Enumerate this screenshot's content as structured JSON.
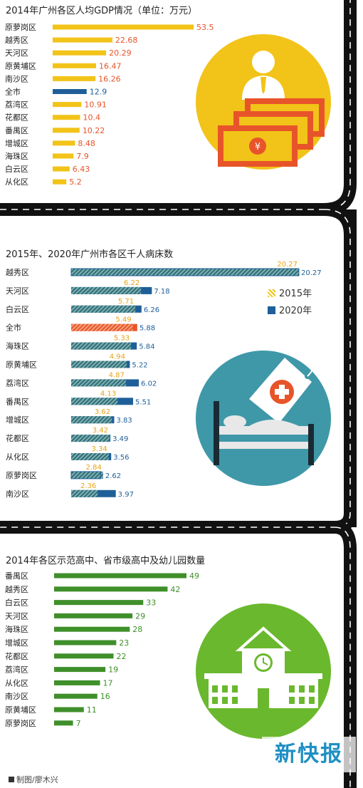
{
  "credit": "制图/廖木兴",
  "watermark": "新快报",
  "colors": {
    "gold": "#f2c318",
    "blue": "#1f5f99",
    "orange": "#e8542a",
    "teal": "#3f7f86",
    "teal_hatch": "#39767d",
    "green": "#3f8f2a",
    "road": "#111111"
  },
  "icons": [
    "businessman-icon",
    "banknote-icon",
    "yuan-icon",
    "hospital-bed-icon",
    "medical-tag-icon",
    "school-building-icon",
    "clock-icon"
  ],
  "chart_data": [
    {
      "type": "bar",
      "title": "2014年广州各区人均GDP情况（单位：万元）",
      "categories": [
        "原萝岗区",
        "越秀区",
        "天河区",
        "原黄埔区",
        "南沙区",
        "全市",
        "荔湾区",
        "花都区",
        "番禺区",
        "增城区",
        "海珠区",
        "白云区",
        "从化区"
      ],
      "values": [
        53.5,
        22.68,
        20.29,
        16.47,
        16.26,
        12.9,
        10.91,
        10.4,
        10.22,
        8.48,
        7.9,
        6.43,
        5.2
      ],
      "labels": [
        "53.5",
        "22.68",
        "20.29",
        "16.47",
        "16.26",
        "12.9",
        "10.91",
        "10.4",
        "10.22",
        "8.48",
        "7.9",
        "6.43",
        "5.2"
      ],
      "highlight": "全市"
    },
    {
      "type": "bar",
      "title": "2015年、2020年广州市各区千人病床数",
      "categories": [
        "越秀区",
        "天河区",
        "白云区",
        "全市",
        "海珠区",
        "原黄埔区",
        "荔湾区",
        "番禺区",
        "增城区",
        "花都区",
        "从化区",
        "原萝岗区",
        "南沙区"
      ],
      "series": [
        {
          "name": "2015年",
          "values": [
            20.27,
            6.22,
            5.71,
            5.49,
            5.33,
            4.94,
            4.87,
            4.13,
            3.62,
            3.42,
            3.34,
            2.84,
            2.36
          ],
          "labels": [
            "20.27",
            "6.22",
            "5.71",
            "5.49",
            "5.33",
            "4.94",
            "4.87",
            "4.13",
            "3.62",
            "3.42",
            "3.34",
            "2.84",
            "2.36"
          ]
        },
        {
          "name": "2020年",
          "values": [
            20.27,
            7.18,
            6.26,
            5.88,
            5.84,
            5.22,
            6.02,
            5.51,
            3.83,
            3.49,
            3.56,
            2.62,
            3.97
          ],
          "labels": [
            "20.27",
            "7.18",
            "6.26",
            "5.88",
            "5.84",
            "5.22",
            "6.02",
            "5.51",
            "3.83",
            "3.49",
            "3.56",
            "2.62",
            "3.97"
          ]
        }
      ],
      "legend": [
        "2015年",
        "2020年"
      ],
      "legend_position": "right",
      "highlight": "全市"
    },
    {
      "type": "bar",
      "title": "2014年各区示范高中、省市级高中及幼儿园数量",
      "categories": [
        "番禺区",
        "越秀区",
        "白云区",
        "天河区",
        "海珠区",
        "增城区",
        "花都区",
        "荔湾区",
        "从化区",
        "南沙区",
        "原黄埔区",
        "原萝岗区"
      ],
      "values": [
        49,
        42,
        33,
        29,
        28,
        23,
        22,
        19,
        17,
        16,
        11,
        7
      ],
      "labels": [
        "49",
        "42",
        "33",
        "29",
        "28",
        "23",
        "22",
        "19",
        "17",
        "16",
        "11",
        "7"
      ]
    }
  ]
}
